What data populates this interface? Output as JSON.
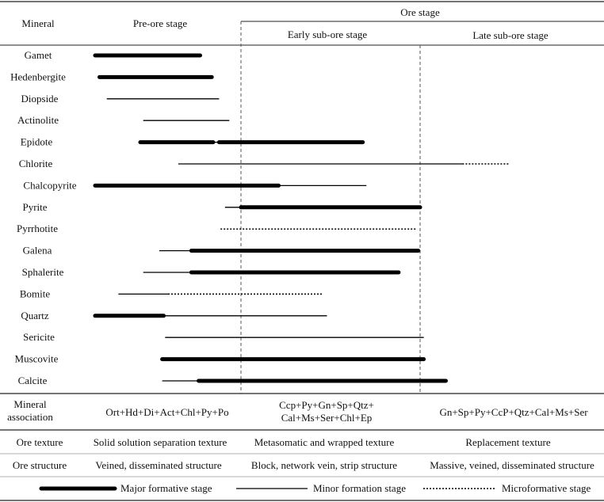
{
  "headers": {
    "mineral": "Mineral",
    "pre_ore": "Pre-ore stage",
    "ore_stage": "Ore stage",
    "early": "Early sub-ore stage",
    "late": "Late sub-ore stage"
  },
  "minerals": [
    {
      "name": "Gamet",
      "segments": [
        [
          "major",
          0.0,
          0.72
        ]
      ]
    },
    {
      "name": "Hedenbergite",
      "segments": [
        [
          "major",
          0.03,
          0.8
        ]
      ]
    },
    {
      "name": "Diopside",
      "segments": [
        [
          "minor",
          0.08,
          0.85
        ]
      ]
    },
    {
      "name": "Actinolite",
      "segments": [
        [
          "minor",
          0.33,
          0.92
        ]
      ]
    },
    {
      "name": "Epidote",
      "segments": [
        [
          "major",
          0.31,
          0.81
        ],
        [
          "minor",
          0.81,
          0.85
        ],
        [
          "major",
          0.85,
          1.68
        ]
      ]
    },
    {
      "name": "Chlorite",
      "segments": [
        [
          "minor",
          0.57,
          2.23
        ],
        [
          "micro",
          2.23,
          2.48
        ]
      ]
    },
    {
      "name": "Chalcopyrite",
      "segments": [
        [
          "major",
          0.0,
          1.21
        ],
        [
          "minor",
          1.21,
          1.7
        ]
      ]
    },
    {
      "name": "Pyrite",
      "segments": [
        [
          "minor",
          0.89,
          1.0
        ],
        [
          "major",
          1.0,
          2.0
        ]
      ]
    },
    {
      "name": "Pyrrhotite",
      "segments": [
        [
          "micro",
          0.86,
          1.98
        ]
      ]
    },
    {
      "name": "Galena",
      "segments": [
        [
          "minor",
          0.44,
          0.66
        ],
        [
          "major",
          0.66,
          1.99
        ]
      ]
    },
    {
      "name": "Sphalerite",
      "segments": [
        [
          "minor",
          0.33,
          0.66
        ],
        [
          "major",
          0.66,
          1.88
        ]
      ]
    },
    {
      "name": "Bomite",
      "segments": [
        [
          "minor",
          0.16,
          0.5
        ],
        [
          "micro",
          0.5,
          1.46
        ]
      ]
    },
    {
      "name": "Quartz",
      "segments": [
        [
          "major",
          0.0,
          0.47
        ],
        [
          "minor",
          0.47,
          1.48
        ]
      ]
    },
    {
      "name": "Sericite",
      "segments": [
        [
          "minor",
          0.48,
          2.02
        ]
      ]
    },
    {
      "name": "Muscovite",
      "segments": [
        [
          "major",
          0.46,
          2.02
        ]
      ]
    },
    {
      "name": "Calcite",
      "segments": [
        [
          "minor",
          0.46,
          0.71
        ],
        [
          "major",
          0.71,
          2.14
        ]
      ]
    }
  ],
  "association": {
    "label_line1": "Mineral",
    "label_line2": "association",
    "pre": "Ort+Hd+Di+Act+Chl+Py+Po",
    "early_line1": "Ccp+Py+Gn+Sp+Qtz+",
    "early_line2": "Cal+Ms+Ser+Chl+Ep",
    "late": "Gn+Sp+Py+CcP+Qtz+Cal+Ms+Ser"
  },
  "texture": {
    "label": "Ore texture",
    "pre": "Solid solution separation texture",
    "early": "Metasomatic and wrapped texture",
    "late": "Replacement texture"
  },
  "structure": {
    "label": "Ore structure",
    "pre": "Veined, disseminated structure",
    "early": "Block, network vein, strip structure",
    "late": "Massive, veined, disseminated structure"
  },
  "legend": {
    "major": "Major formative stage",
    "minor": "Minor formation stage",
    "micro": "Microformative stage"
  }
}
